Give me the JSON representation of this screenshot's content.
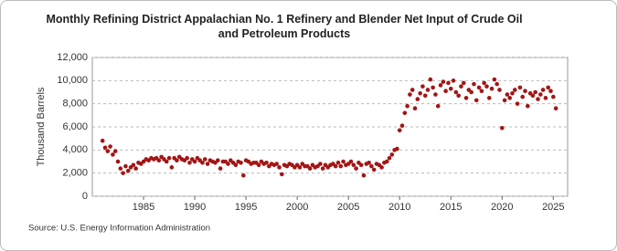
{
  "chart_data": {
    "type": "scatter",
    "title": "Monthly Refining District Appalachian No. 1 Refinery and Blender Net Input of Crude Oil and Petroleum Products",
    "y_label": "Thousand Barrels",
    "source": "Source: U.S. Energy Information Administration",
    "color": "#a31515",
    "grid": true,
    "xlim": [
      1980,
      2026.4
    ],
    "ylim": [
      0,
      12000
    ],
    "xticks": [
      1985,
      1990,
      1995,
      2000,
      2005,
      2010,
      2015,
      2020,
      2025
    ],
    "yticks": [
      0,
      {
        "value": 2000,
        "label": "2,000"
      },
      {
        "value": 4000,
        "label": "4,000"
      },
      {
        "value": 6000,
        "label": "6,000"
      },
      {
        "value": 8000,
        "label": "8,000"
      },
      {
        "value": 10000,
        "label": "10,000"
      },
      {
        "value": 12000,
        "label": "12,000"
      }
    ],
    "x": [
      1981,
      1981.25,
      1981.5,
      1981.75,
      1982,
      1982.25,
      1982.5,
      1982.75,
      1983,
      1983.25,
      1983.5,
      1983.75,
      1984,
      1984.25,
      1984.5,
      1984.75,
      1985,
      1985.25,
      1985.5,
      1985.75,
      1986,
      1986.25,
      1986.5,
      1986.75,
      1987,
      1987.25,
      1987.5,
      1987.75,
      1988,
      1988.25,
      1988.5,
      1988.75,
      1989,
      1989.25,
      1989.5,
      1989.75,
      1990,
      1990.25,
      1990.5,
      1990.75,
      1991,
      1991.25,
      1991.5,
      1991.75,
      1992,
      1992.25,
      1992.5,
      1992.75,
      1993,
      1993.25,
      1993.5,
      1993.75,
      1994,
      1994.25,
      1994.5,
      1994.75,
      1995,
      1995.25,
      1995.5,
      1995.75,
      1996,
      1996.25,
      1996.5,
      1996.75,
      1997,
      1997.25,
      1997.5,
      1997.75,
      1998,
      1998.25,
      1998.5,
      1998.75,
      1999,
      1999.25,
      1999.5,
      1999.75,
      2000,
      2000.25,
      2000.5,
      2000.75,
      2001,
      2001.25,
      2001.5,
      2001.75,
      2002,
      2002.25,
      2002.5,
      2002.75,
      2003,
      2003.25,
      2003.5,
      2003.75,
      2004,
      2004.25,
      2004.5,
      2004.75,
      2005,
      2005.25,
      2005.5,
      2005.75,
      2006,
      2006.25,
      2006.5,
      2006.75,
      2007,
      2007.25,
      2007.5,
      2007.75,
      2008,
      2008.25,
      2008.5,
      2008.75,
      2009,
      2009.25,
      2009.5,
      2009.75,
      2010,
      2010.25,
      2010.5,
      2010.75,
      2011,
      2011.25,
      2011.5,
      2011.75,
      2012,
      2012.25,
      2012.5,
      2012.75,
      2013,
      2013.25,
      2013.5,
      2013.75,
      2014,
      2014.25,
      2014.5,
      2014.75,
      2015,
      2015.25,
      2015.5,
      2015.75,
      2016,
      2016.25,
      2016.5,
      2016.75,
      2017,
      2017.25,
      2017.5,
      2017.75,
      2018,
      2018.25,
      2018.5,
      2018.75,
      2019,
      2019.25,
      2019.5,
      2019.75,
      2020,
      2020.25,
      2020.5,
      2020.75,
      2021,
      2021.25,
      2021.5,
      2021.75,
      2022,
      2022.25,
      2022.5,
      2022.75,
      2023,
      2023.25,
      2023.5,
      2023.75,
      2024,
      2024.25,
      2024.5,
      2024.75,
      2025,
      2025.25
    ],
    "values": [
      4800,
      4200,
      3900,
      4300,
      3600,
      3900,
      3000,
      2400,
      2000,
      2600,
      2200,
      2500,
      2700,
      2400,
      2900,
      2800,
      3000,
      3200,
      3100,
      3300,
      3200,
      3300,
      3100,
      3400,
      3200,
      3000,
      3300,
      2500,
      3300,
      3100,
      3400,
      3200,
      3100,
      3300,
      2900,
      3200,
      3000,
      3300,
      3100,
      2900,
      3200,
      2800,
      3100,
      3000,
      2900,
      3100,
      2400,
      3000,
      3000,
      2800,
      3100,
      2900,
      2700,
      3000,
      2900,
      1800,
      3100,
      3000,
      2800,
      2900,
      2900,
      2700,
      3000,
      2800,
      2900,
      2600,
      2800,
      2700,
      2800,
      2500,
      1900,
      2700,
      2600,
      2800,
      2700,
      2500,
      2700,
      2500,
      2800,
      2600,
      2600,
      2400,
      2700,
      2500,
      2600,
      2800,
      2400,
      2700,
      2500,
      2700,
      2800,
      2600,
      2900,
      2600,
      3000,
      2700,
      2800,
      3000,
      2700,
      2400,
      2900,
      2700,
      1800,
      2800,
      2900,
      2600,
      2300,
      2800,
      2700,
      2500,
      2900,
      3000,
      3300,
      3600,
      4000,
      4100,
      5700,
      6100,
      7200,
      7800,
      8800,
      9200,
      7600,
      8400,
      8900,
      9500,
      8700,
      9200,
      10100,
      9400,
      8800,
      7800,
      9600,
      9900,
      9100,
      9800,
      9300,
      10000,
      9000,
      8700,
      9500,
      9800,
      8500,
      9200,
      9000,
      9700,
      8300,
      9400,
      9100,
      9800,
      9500,
      8500,
      9300,
      10100,
      9700,
      9200,
      5900,
      8300,
      8800,
      8500,
      8900,
      9200,
      8000,
      9400,
      8600,
      9100,
      7800,
      8900,
      8700,
      9000,
      8400,
      8800,
      9200,
      8500,
      9400,
      9100,
      8600,
      7600
    ]
  }
}
